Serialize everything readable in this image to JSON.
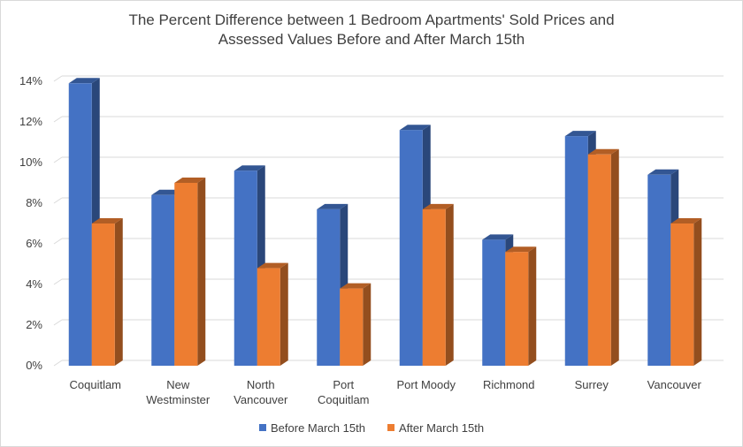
{
  "chart_data": {
    "type": "bar",
    "title": "The Percent Difference between 1 Bedroom Apartments' Sold Prices and Assessed Values Before and After March 15th",
    "title_lines": [
      "The Percent Difference between 1 Bedroom Apartments' Sold Prices and",
      "Assessed Values Before and After March 15th"
    ],
    "categories": [
      "Coquitlam",
      "New Westminster",
      "North Vancouver",
      "Port Coquitlam",
      "Port Moody",
      "Richmond",
      "Surrey",
      "Vancouver"
    ],
    "category_lines": [
      [
        "Coquitlam"
      ],
      [
        "New",
        "Westminster"
      ],
      [
        "North",
        "Vancouver"
      ],
      [
        "Port",
        "Coquitlam"
      ],
      [
        "Port Moody"
      ],
      [
        "Richmond"
      ],
      [
        "Surrey"
      ],
      [
        "Vancouver"
      ]
    ],
    "series": [
      {
        "name": "Before March 15th",
        "color": "#4472c4",
        "values": [
          13.9,
          8.4,
          9.6,
          7.7,
          11.6,
          6.2,
          11.3,
          9.4
        ]
      },
      {
        "name": "After March 15th",
        "color": "#ed7d31",
        "values": [
          7.0,
          9.0,
          4.8,
          3.8,
          7.7,
          5.6,
          10.4,
          7.0
        ]
      }
    ],
    "ylim": [
      0,
      14
    ],
    "y_ticks": [
      0,
      2,
      4,
      6,
      8,
      10,
      12,
      14
    ],
    "y_tick_labels": [
      "0%",
      "2%",
      "4%",
      "6%",
      "8%",
      "10%",
      "12%",
      "14%"
    ],
    "grid": true,
    "legend_position": "bottom",
    "style": "3d-clustered-column"
  }
}
